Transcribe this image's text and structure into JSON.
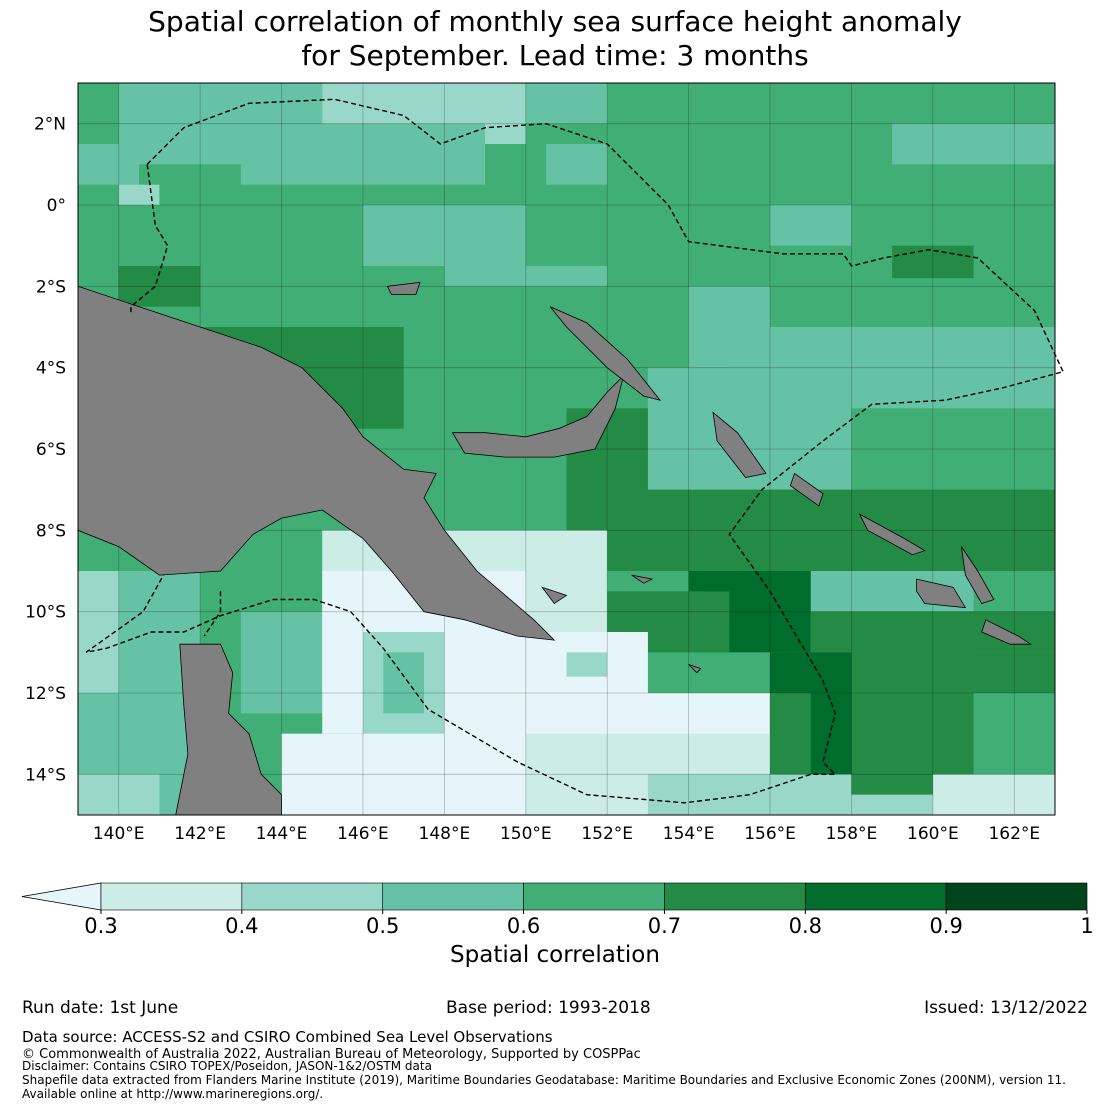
{
  "title": {
    "line1": "Spatial correlation of monthly sea surface height anomaly",
    "line2": "for September. Lead time: 3 months"
  },
  "map": {
    "lat_labels": [
      "2°N",
      "0°",
      "2°S",
      "4°S",
      "6°S",
      "8°S",
      "10°S",
      "12°S",
      "14°S"
    ],
    "lon_labels": [
      "140°E",
      "142°E",
      "144°E",
      "146°E",
      "148°E",
      "150°E",
      "152°E",
      "154°E",
      "156°E",
      "158°E",
      "160°E",
      "162°E"
    ],
    "extent": {
      "lon_min": 139,
      "lon_max": 163,
      "lat_min": -15,
      "lat_max": 3
    },
    "land_color": "#808080",
    "boundary_style": "dashed"
  },
  "colorbar": {
    "label": "Spatial correlation",
    "ticks": [
      "0.3",
      "0.4",
      "0.5",
      "0.6",
      "0.7",
      "0.8",
      "0.9",
      "1"
    ],
    "bins": [
      {
        "range": "< 0.3",
        "color": "#e5f5f9"
      },
      {
        "range": "0.3-0.4",
        "color": "#ccece6"
      },
      {
        "range": "0.4-0.5",
        "color": "#99d8c9"
      },
      {
        "range": "0.5-0.6",
        "color": "#66c2a4"
      },
      {
        "range": "0.6-0.7",
        "color": "#41ae76"
      },
      {
        "range": "0.7-0.8",
        "color": "#238b45"
      },
      {
        "range": "0.8-0.9",
        "color": "#006d2c"
      },
      {
        "range": "0.9-1",
        "color": "#00441b"
      }
    ]
  },
  "footer": {
    "run_date": "Run date: 1st June",
    "base_period": "Base period: 1993-2018",
    "issued": "Issued: 13/12/2022",
    "data_source": "Data source: ACCESS-S2 and CSIRO Combined Sea Level Observations",
    "copyright": "© Commonwealth of Australia 2022, Australian Bureau of Meteorology, Supported by COSPPac",
    "disclaimer": "Disclaimer: Contains CSIRO TOPEX/Poseidon, JASON-1&2/OSTM data",
    "shapefile": "Shapefile data extracted from Flanders Marine Institute (2019), Maritime Boundaries Geodatabase: Maritime Boundaries and Exclusive Economic Zones (200NM), version 11.",
    "available": "Available online at http://www.marineregions.org/."
  }
}
